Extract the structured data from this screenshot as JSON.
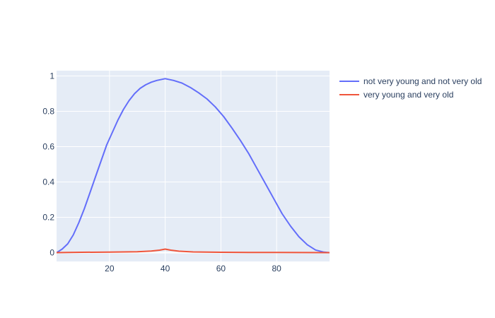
{
  "chart_data": {
    "type": "line",
    "xlim": [
      1,
      99
    ],
    "ylim": [
      -0.05,
      1.03
    ],
    "x_ticks": [
      20,
      40,
      60,
      80
    ],
    "y_ticks": [
      0,
      0.2,
      0.4,
      0.6,
      0.8,
      1
    ],
    "grid": true,
    "legend_position": "top-right outside",
    "series": [
      {
        "name": "not very young and not very old",
        "color": "#636efa",
        "x": [
          1,
          3,
          5,
          7,
          9,
          11,
          13,
          15,
          17,
          19,
          21,
          23,
          25,
          27,
          29,
          31,
          33,
          35,
          37,
          40,
          43,
          46,
          49,
          52,
          55,
          58,
          61,
          64,
          67,
          70,
          73,
          76,
          79,
          82,
          85,
          88,
          91,
          94,
          97,
          99
        ],
        "y": [
          0,
          0.02,
          0.05,
          0.1,
          0.17,
          0.25,
          0.34,
          0.43,
          0.52,
          0.61,
          0.68,
          0.75,
          0.81,
          0.86,
          0.9,
          0.93,
          0.95,
          0.965,
          0.975,
          0.985,
          0.975,
          0.96,
          0.935,
          0.905,
          0.87,
          0.825,
          0.77,
          0.705,
          0.635,
          0.56,
          0.475,
          0.39,
          0.305,
          0.22,
          0.15,
          0.09,
          0.045,
          0.015,
          0.003,
          0
        ]
      },
      {
        "name": "very young and very old",
        "color": "#ef553b",
        "x": [
          1,
          5,
          10,
          20,
          30,
          35,
          38,
          40,
          42,
          45,
          50,
          60,
          70,
          80,
          90,
          99
        ],
        "y": [
          0,
          0.001,
          0.002,
          0.003,
          0.005,
          0.009,
          0.014,
          0.02,
          0.014,
          0.008,
          0.004,
          0.002,
          0.001,
          0.001,
          0.0005,
          0
        ]
      }
    ]
  }
}
